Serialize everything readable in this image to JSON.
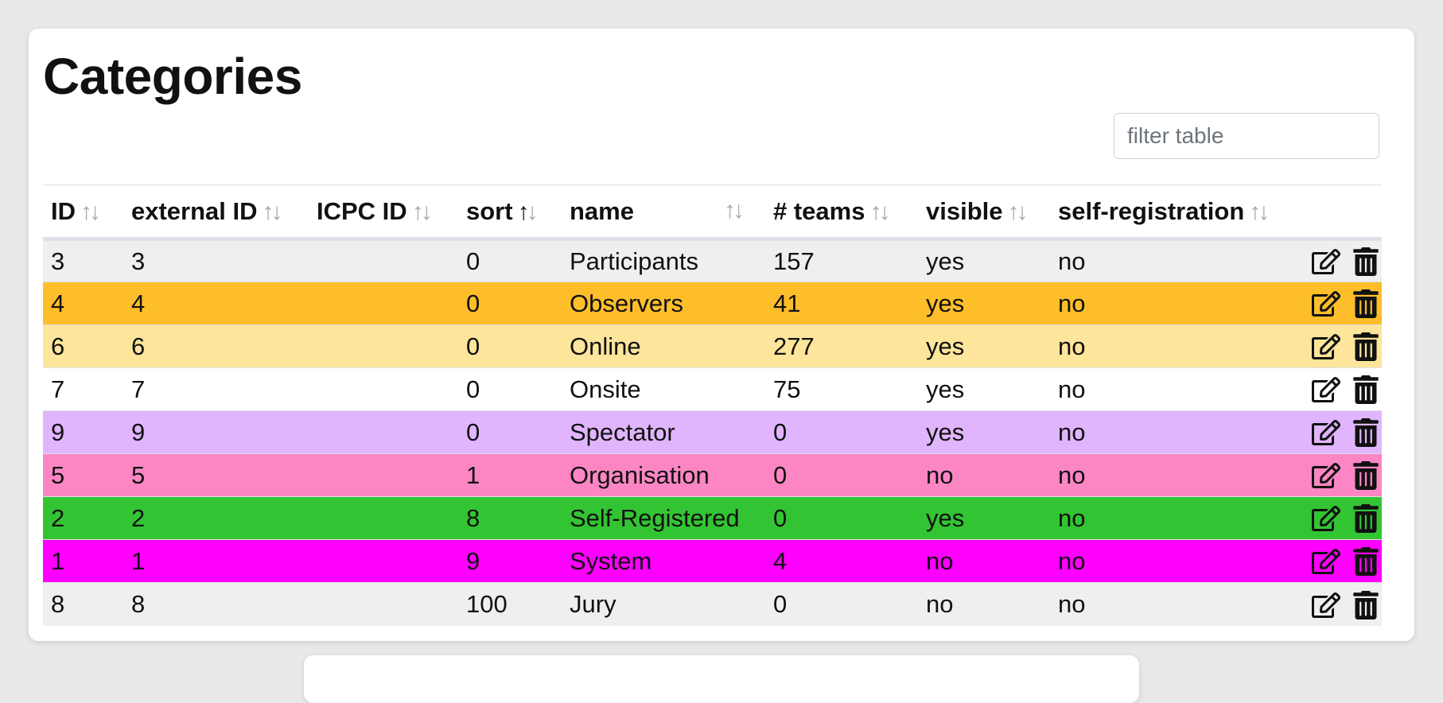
{
  "page": {
    "title": "Categories"
  },
  "filter": {
    "placeholder": "filter table",
    "value": ""
  },
  "table": {
    "columns": [
      {
        "label": "ID",
        "sort_state": "none"
      },
      {
        "label": "external ID",
        "sort_state": "none"
      },
      {
        "label": "ICPC ID",
        "sort_state": "none"
      },
      {
        "label": "sort",
        "sort_state": "ascending"
      },
      {
        "label": "name",
        "sort_state": "none"
      },
      {
        "label": "# teams",
        "sort_state": "none"
      },
      {
        "label": "visible",
        "sort_state": "none"
      },
      {
        "label": "self-registration",
        "sort_state": "none"
      }
    ],
    "sort_glyphs": {
      "up": "↑",
      "down": "↓"
    },
    "rows": [
      {
        "id": "3",
        "external_id": "3",
        "icpc_id": "",
        "sort": "0",
        "name": "Participants",
        "teams": "157",
        "visible": "yes",
        "self_registration": "no",
        "color": "#efefef"
      },
      {
        "id": "4",
        "external_id": "4",
        "icpc_id": "",
        "sort": "0",
        "name": "Observers",
        "teams": "41",
        "visible": "yes",
        "self_registration": "no",
        "color": "#fdbe2a"
      },
      {
        "id": "6",
        "external_id": "6",
        "icpc_id": "",
        "sort": "0",
        "name": "Online",
        "teams": "277",
        "visible": "yes",
        "self_registration": "no",
        "color": "#fde59b"
      },
      {
        "id": "7",
        "external_id": "7",
        "icpc_id": "",
        "sort": "0",
        "name": "Onsite",
        "teams": "75",
        "visible": "yes",
        "self_registration": "no",
        "color": "#ffffff"
      },
      {
        "id": "9",
        "external_id": "9",
        "icpc_id": "",
        "sort": "0",
        "name": "Spectator",
        "teams": "0",
        "visible": "yes",
        "self_registration": "no",
        "color": "#e0b5fd"
      },
      {
        "id": "5",
        "external_id": "5",
        "icpc_id": "",
        "sort": "1",
        "name": "Organisation",
        "teams": "0",
        "visible": "no",
        "self_registration": "no",
        "color": "#fc86c4"
      },
      {
        "id": "2",
        "external_id": "2",
        "icpc_id": "",
        "sort": "8",
        "name": "Self-Registered",
        "teams": "0",
        "visible": "yes",
        "self_registration": "no",
        "color": "#33c433"
      },
      {
        "id": "1",
        "external_id": "1",
        "icpc_id": "",
        "sort": "9",
        "name": "System",
        "teams": "4",
        "visible": "no",
        "self_registration": "no",
        "color": "#ff00ff"
      },
      {
        "id": "8",
        "external_id": "8",
        "icpc_id": "",
        "sort": "100",
        "name": "Jury",
        "teams": "0",
        "visible": "no",
        "self_registration": "no",
        "color": "#efefef"
      }
    ],
    "row_actions": [
      {
        "icon": "edit-icon"
      },
      {
        "icon": "trash-icon"
      }
    ]
  }
}
